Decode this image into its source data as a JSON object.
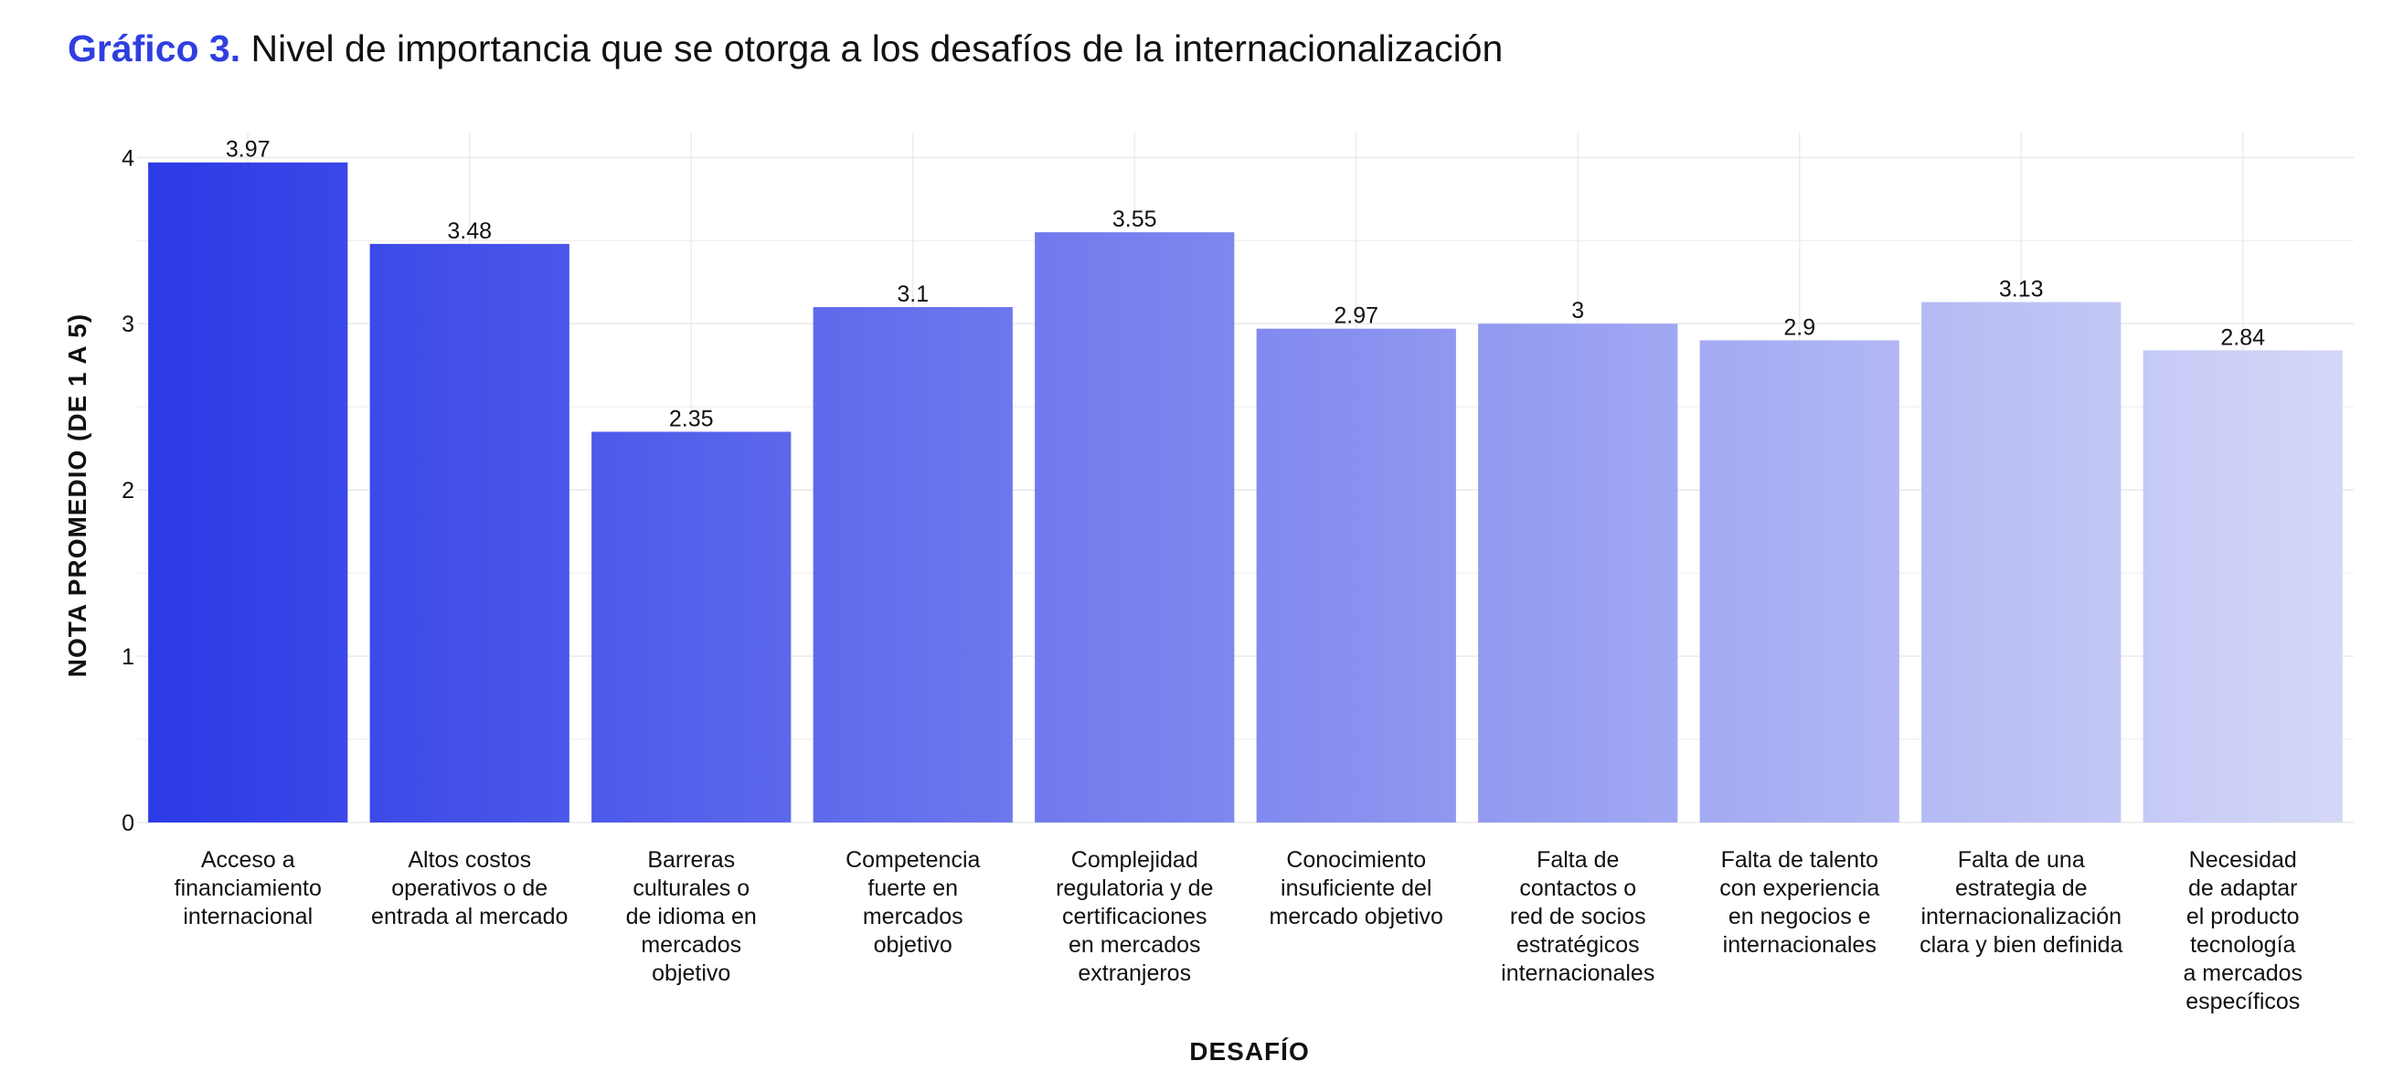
{
  "title": {
    "lead": "Gráfico 3.",
    "text": "Nivel de importancia que se otorga a los desafíos de la internacionalización"
  },
  "colors": {
    "title_accent": "#2f3fe0",
    "bar_start": "#2c3be6",
    "bar_end": "#d5d8f7",
    "grid": "#ebebeb"
  },
  "chart_data": {
    "type": "bar",
    "title": "Nivel de importancia que se otorga a los desafíos de la internacionalización",
    "xlabel": "DESAFÍO",
    "ylabel": "NOTA PROMEDIO (DE 1 A 5)",
    "ylim": [
      0,
      4.15
    ],
    "yticks": [
      0,
      1,
      2,
      3,
      4
    ],
    "grid": true,
    "categories": [
      [
        "Acceso a",
        "financiamiento",
        "internacional"
      ],
      [
        "Altos costos",
        "operativos o de",
        "entrada al mercado"
      ],
      [
        "Barreras",
        "culturales o",
        "de idioma en",
        "mercados",
        "objetivo"
      ],
      [
        "Competencia",
        "fuerte en",
        "mercados",
        "objetivo"
      ],
      [
        "Complejidad",
        "regulatoria y de",
        "certificaciones",
        "en mercados",
        "extranjeros"
      ],
      [
        "Conocimiento",
        "insuficiente del",
        "mercado objetivo"
      ],
      [
        "Falta de",
        "contactos o",
        "red de socios",
        "estratégicos",
        "internacionales"
      ],
      [
        "Falta de talento",
        "con experiencia",
        "en negocios e",
        "internacionales"
      ],
      [
        "Falta de una",
        "estrategia de",
        "internacionalización",
        "clara y bien definida"
      ],
      [
        "Necesidad",
        "de adaptar",
        "el producto",
        "tecnología",
        "a mercados",
        "específicos"
      ]
    ],
    "values": [
      3.97,
      3.48,
      2.35,
      3.1,
      3.55,
      2.97,
      3,
      2.9,
      3.13,
      2.84
    ],
    "value_labels": [
      "3.97",
      "3.48",
      "2.35",
      "3.1",
      "3.55",
      "2.97",
      "3",
      "2.9",
      "3.13",
      "2.84"
    ]
  }
}
